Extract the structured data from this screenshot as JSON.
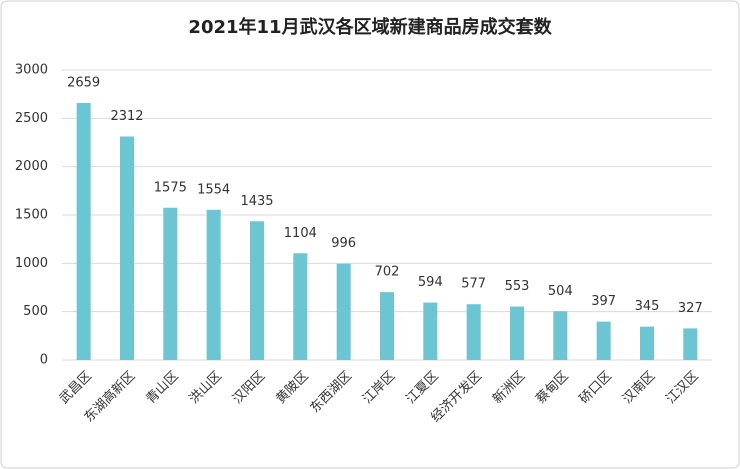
{
  "chart_data": {
    "type": "bar",
    "title": "2021年11月武汉各区域新建商品房成交套数",
    "categories": [
      "武昌区",
      "东湖高新区",
      "青山区",
      "洪山区",
      "汉阳区",
      "黄陂区",
      "东西湖区",
      "江岸区",
      "江夏区",
      "经济开发区",
      "新洲区",
      "蔡甸区",
      "硚口区",
      "汉南区",
      "江汉区"
    ],
    "values": [
      2659,
      2312,
      1575,
      1554,
      1435,
      1104,
      996,
      702,
      594,
      577,
      553,
      504,
      397,
      345,
      327
    ],
    "color": "#6cc5d2",
    "ylim": [
      0,
      3000
    ],
    "yticks": [
      0,
      500,
      1000,
      1500,
      2000,
      2500,
      3000
    ],
    "grid": true
  }
}
